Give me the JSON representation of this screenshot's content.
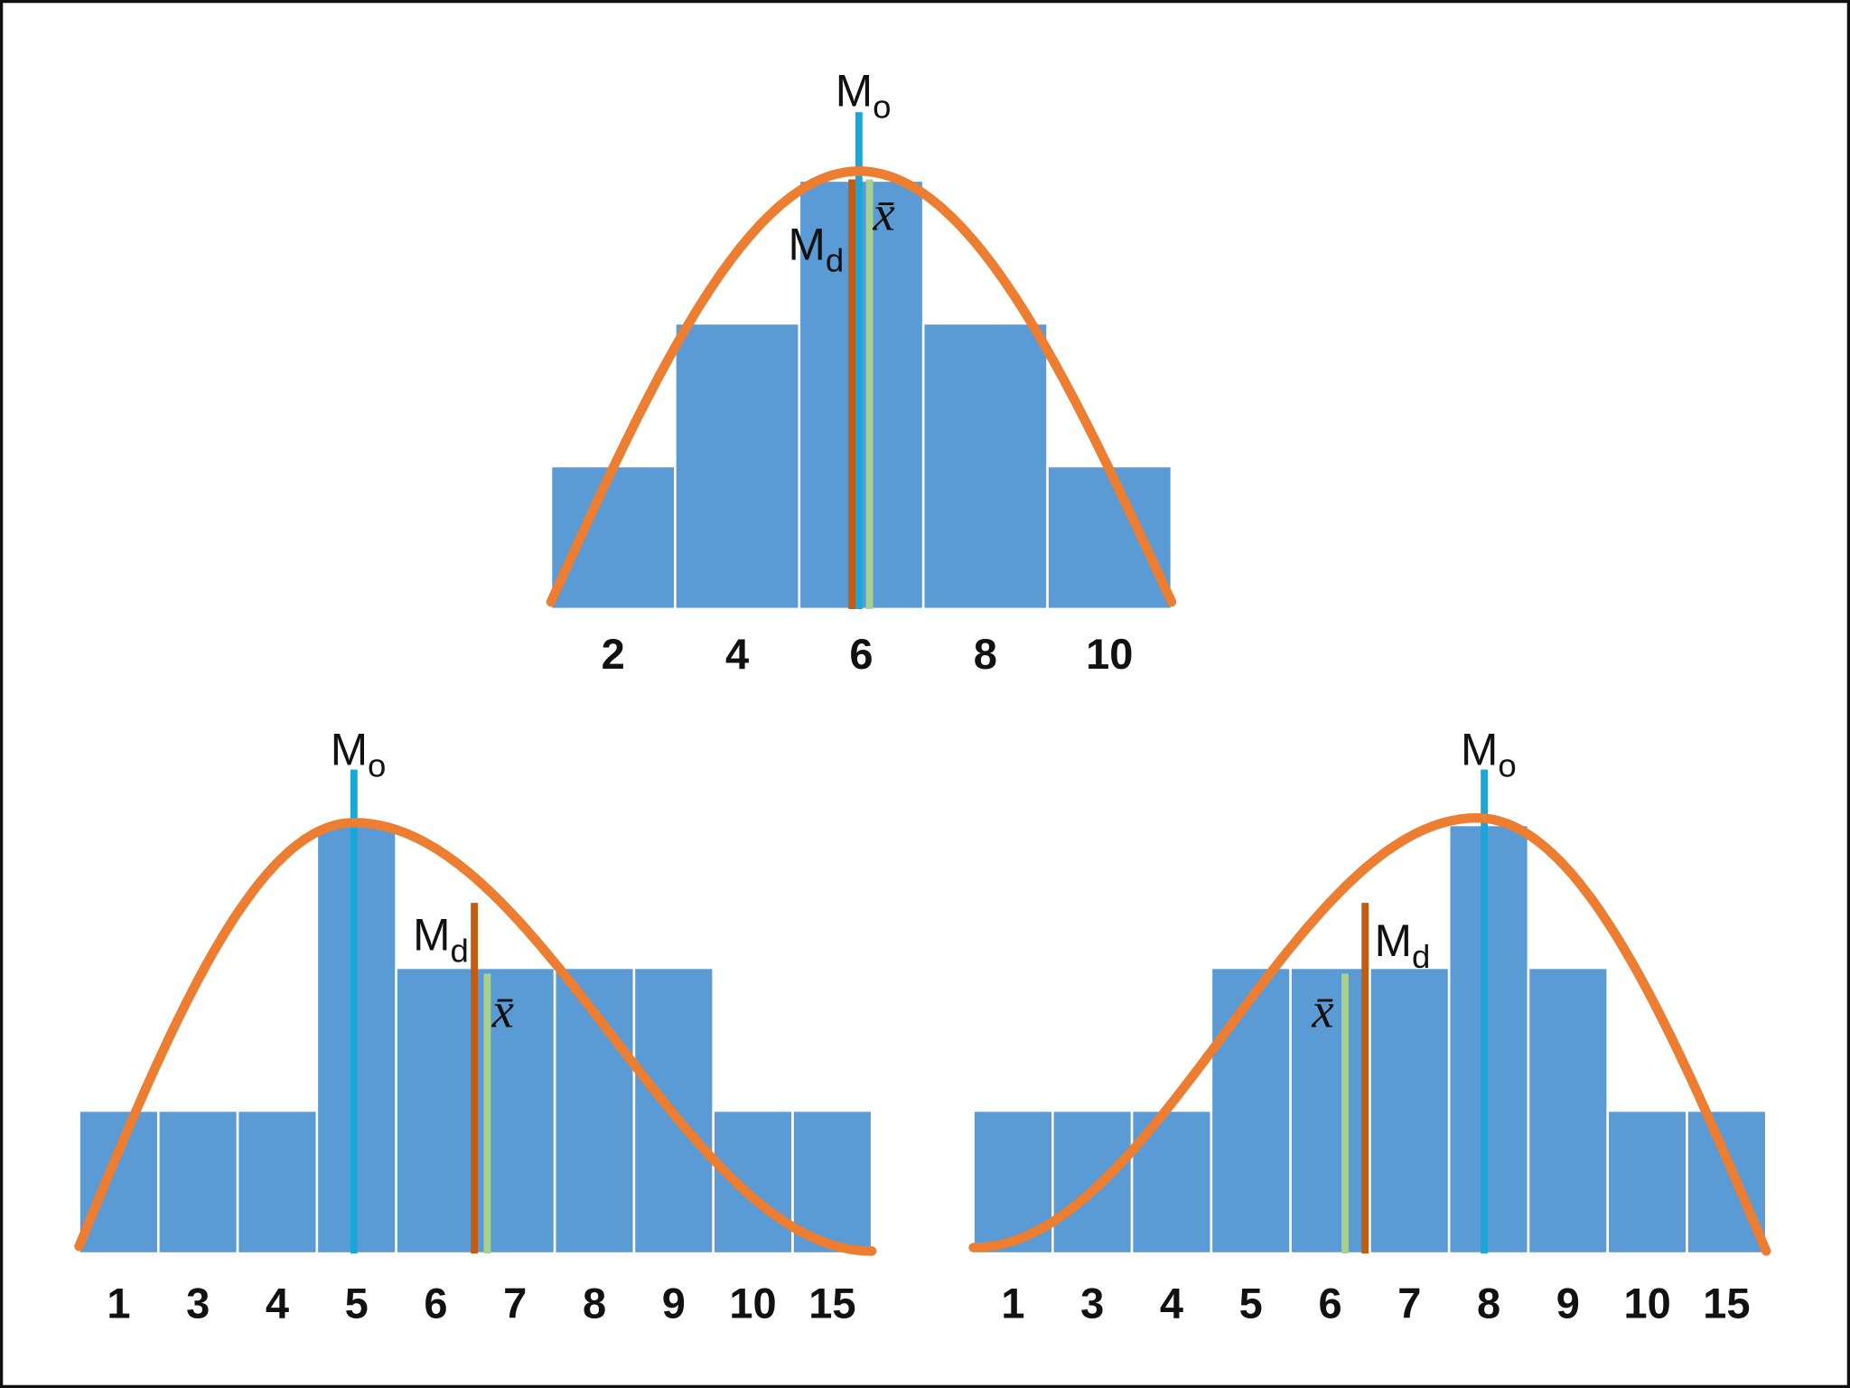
{
  "chart_data": [
    {
      "type": "bar",
      "categories": [
        "2",
        "4",
        "6",
        "8",
        "10"
      ],
      "values": [
        1,
        2,
        3,
        2,
        1
      ],
      "color": "#5b9bd5",
      "annotations": [
        {
          "text": "M",
          "sub": "o",
          "color": "#1aa7d8"
        },
        {
          "text": "M",
          "sub": "d",
          "color": "#c55a11"
        },
        {
          "text": "x̄",
          "color": "#a9d18e"
        }
      ]
    },
    {
      "type": "bar",
      "categories": [
        "1",
        "3",
        "4",
        "5",
        "6",
        "7",
        "8",
        "9",
        "10",
        "15"
      ],
      "values": [
        1,
        1,
        1,
        3,
        2,
        2,
        2,
        2,
        1,
        1
      ],
      "color": "#5b9bd5",
      "annotations": [
        {
          "text": "M",
          "sub": "o",
          "color": "#1aa7d8"
        },
        {
          "text": "M",
          "sub": "d",
          "color": "#c55a11"
        },
        {
          "text": "x̄",
          "color": "#a9d18e"
        }
      ]
    },
    {
      "type": "bar",
      "categories": [
        "1",
        "3",
        "4",
        "5",
        "6",
        "7",
        "8",
        "9",
        "10",
        "15"
      ],
      "values": [
        1,
        1,
        1,
        2,
        2,
        2,
        3,
        2,
        1,
        1
      ],
      "color": "#5b9bd5",
      "annotations": [
        {
          "text": "M",
          "sub": "o",
          "color": "#1aa7d8"
        },
        {
          "text": "M",
          "sub": "d",
          "color": "#c55a11"
        },
        {
          "text": "x̄",
          "color": "#a9d18e"
        }
      ]
    }
  ]
}
